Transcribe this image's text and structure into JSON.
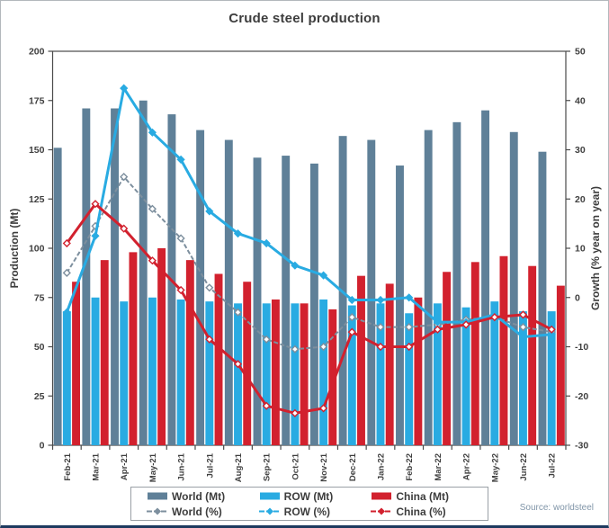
{
  "title": "Crude steel production",
  "source": "Source: worldsteel",
  "left_axis": {
    "label": "Production (Mt)",
    "tick_labels": [
      "0",
      "25",
      "50",
      "75",
      "100",
      "125",
      "150",
      "175",
      "200"
    ]
  },
  "right_axis": {
    "label": "Growth (% year on year)",
    "tick_labels": [
      "-30",
      "-20",
      "-10",
      "0",
      "10",
      "20",
      "30",
      "40",
      "50"
    ]
  },
  "chart_data": {
    "type": "bar+line combo",
    "categories": [
      "Feb-21",
      "Mar-21",
      "Apr-21",
      "May-21",
      "Jun-21",
      "Jul-21",
      "Aug-21",
      "Sep-21",
      "Oct-21",
      "Nov-21",
      "Dec-21",
      "Jan-22",
      "Feb-22",
      "Mar-22",
      "Apr-22",
      "May-22",
      "Jun-22",
      "Jul-22"
    ],
    "ylim_left": [
      0,
      200
    ],
    "ylim_right": [
      -30,
      50
    ],
    "left_tick_step": 25,
    "right_tick_step": 10,
    "grid": false,
    "legend_position": "bottom",
    "bar_series": [
      {
        "name": "World (Mt)",
        "axis": "left",
        "color": "#5F8098",
        "values": [
          151,
          171,
          171,
          175,
          168,
          160,
          155,
          146,
          147,
          143,
          157,
          155,
          142,
          160,
          164,
          170,
          159,
          149
        ]
      },
      {
        "name": "ROW (Mt)",
        "axis": "left",
        "color": "#29ABE2",
        "values": [
          68,
          75,
          73,
          75,
          74,
          73,
          72,
          72,
          72,
          74,
          71,
          72,
          67,
          72,
          70,
          73,
          68,
          68
        ]
      },
      {
        "name": "China (Mt)",
        "axis": "left",
        "color": "#D2212E",
        "values": [
          83,
          94,
          98,
          100,
          94,
          87,
          83,
          74,
          72,
          69,
          86,
          82,
          75,
          88,
          93,
          96,
          91,
          81
        ]
      }
    ],
    "line_series": [
      {
        "name": "World (%)",
        "axis": "right",
        "color": "#7D8F9E",
        "style": "dashed",
        "marker": "diamond-open",
        "values": [
          5,
          14.5,
          24.5,
          18,
          12,
          2,
          -3,
          -8.5,
          -10.5,
          -10,
          -4,
          -6,
          -6,
          -5.5,
          -4.5,
          -4,
          -6,
          -7
        ]
      },
      {
        "name": "ROW (%)",
        "axis": "right",
        "color": "#29ABE2",
        "style": "solid",
        "marker": "diamond",
        "values": [
          -3,
          12.5,
          42.5,
          33.5,
          28,
          17.5,
          13,
          11,
          6.5,
          4.5,
          -0.5,
          -0.5,
          0,
          -5,
          -5,
          -3.5,
          -8,
          -7.5
        ]
      },
      {
        "name": "China (%)",
        "axis": "right",
        "color": "#D2212E",
        "style": "solid",
        "marker": "diamond-open",
        "values": [
          11,
          19,
          14,
          7.5,
          1.5,
          -8.5,
          -13.5,
          -22,
          -23.5,
          -22.5,
          -7,
          -10,
          -10,
          -6.5,
          -5.5,
          -4,
          -3.5,
          -6.5
        ]
      }
    ]
  },
  "legend": {
    "items": [
      {
        "label": "World (Mt)",
        "type": "bar",
        "color": "#5F8098"
      },
      {
        "label": "ROW (Mt)",
        "type": "bar",
        "color": "#29ABE2"
      },
      {
        "label": "China (Mt)",
        "type": "bar",
        "color": "#D2212E"
      },
      {
        "label": "World (%)",
        "type": "line",
        "color": "#7D8F9E"
      },
      {
        "label": "ROW (%)",
        "type": "line",
        "color": "#29ABE2"
      },
      {
        "label": "China (%)",
        "type": "line",
        "color": "#D2212E"
      }
    ]
  }
}
